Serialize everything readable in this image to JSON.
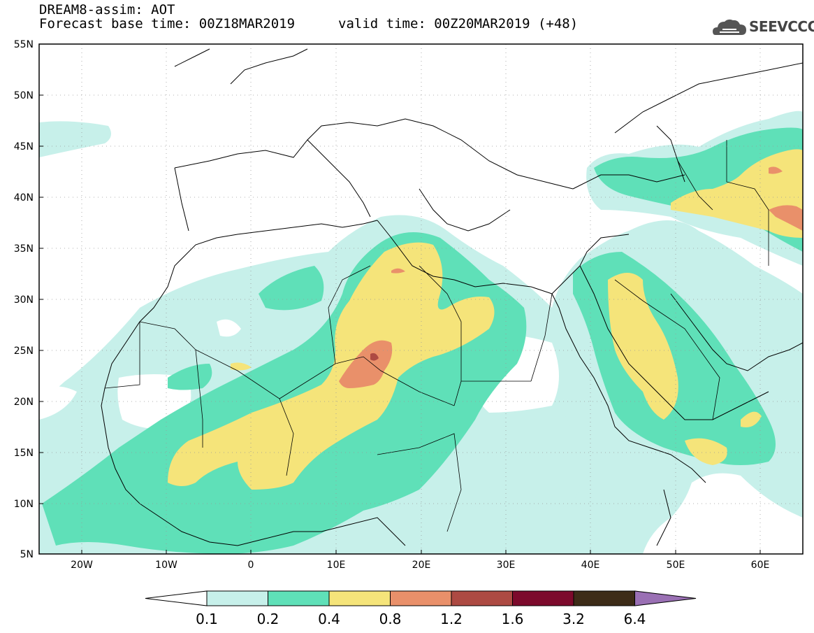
{
  "header": {
    "title": "DREAM8-assim: AOT",
    "base_time": "Forecast base time: 00Z18MAR2019",
    "valid_time": "valid time: 00Z20MAR2019 (+48)",
    "logo_text": "SEEVCCC"
  },
  "map": {
    "lon_range": [
      -25,
      65
    ],
    "lat_range": [
      5,
      55
    ],
    "lat_ticks": [
      "55N",
      "50N",
      "45N",
      "40N",
      "35N",
      "30N",
      "25N",
      "20N",
      "15N",
      "10N",
      "5N"
    ],
    "lon_ticks": [
      "20W",
      "10W",
      "0",
      "10E",
      "20E",
      "30E",
      "40E",
      "50E",
      "60E"
    ],
    "grid_lines": "dotted"
  },
  "colorbar": {
    "labels": [
      "0.1",
      "0.2",
      "0.4",
      "0.8",
      "1.2",
      "1.6",
      "3.2",
      "6.4"
    ],
    "colors": [
      "#ffffff",
      "#c7f0ea",
      "#5fe0b8",
      "#f5e47a",
      "#e9906a",
      "#ad4a43",
      "#7c0a2c",
      "#3d2c18",
      "#9a70b4"
    ]
  }
}
